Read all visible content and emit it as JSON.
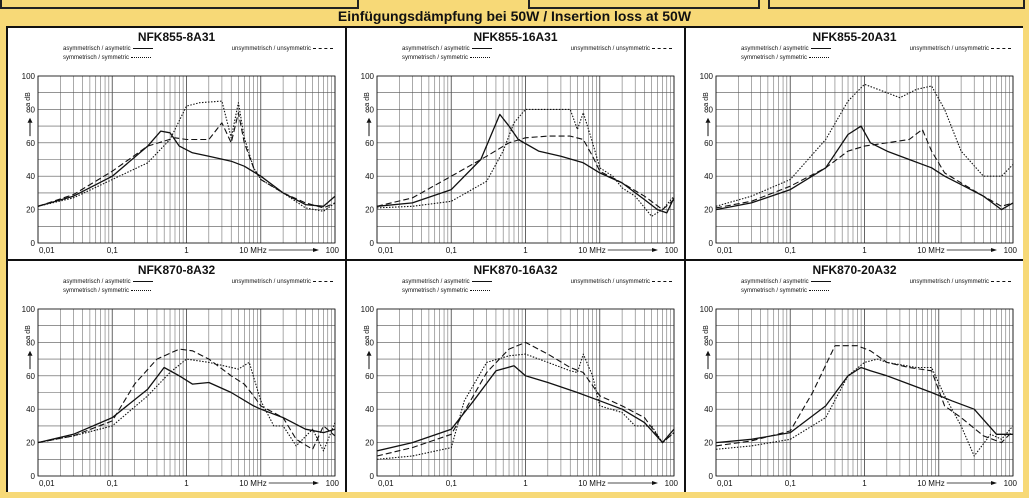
{
  "heading": "Einfügungsdämpfung bei 50W  /  Insertion loss at 50W",
  "legend": {
    "asym": "asymmetrisch / asymetric",
    "unsym": "unsymmetrisch / unsymmetric",
    "sym": "symmetrisch / symmetric"
  },
  "ytick_labels": [
    "0",
    "20",
    "40",
    "60",
    "80",
    "100"
  ],
  "y_unit": "a dB",
  "xtick_labels": [
    "0,01",
    "0,1",
    "1",
    "10 MHz",
    "100"
  ],
  "styles": {
    "asym": "solid",
    "unsym": "dashed",
    "sym": "dotted"
  },
  "colors": {
    "background": "#f7d977",
    "line": "#111111",
    "grid": "#555555",
    "panel": "#ffffff"
  },
  "chart_data": [
    {
      "type": "line",
      "title": "NFK855-8A31",
      "xscale": "log",
      "xlim": [
        0.01,
        100
      ],
      "ylim": [
        0,
        100
      ],
      "grid": true,
      "series": [
        {
          "name": "asymmetrisch / asymetric",
          "style": "solid",
          "x": [
            0.01,
            0.03,
            0.1,
            0.3,
            0.45,
            0.6,
            0.8,
            1.2,
            2,
            4,
            6,
            10,
            20,
            40,
            70,
            100
          ],
          "y": [
            22,
            28,
            40,
            58,
            67,
            66,
            58,
            54,
            52,
            49,
            46,
            40,
            30,
            23,
            22,
            28
          ]
        },
        {
          "name": "unsymmetrisch / unsymmetric",
          "style": "dashed",
          "x": [
            0.01,
            0.03,
            0.1,
            0.3,
            0.7,
            1,
            2,
            3,
            4,
            5,
            6,
            8,
            10,
            20,
            40,
            70,
            100
          ],
          "y": [
            22,
            29,
            43,
            58,
            63,
            62,
            62,
            72,
            60,
            78,
            60,
            45,
            38,
            30,
            24,
            21,
            24
          ]
        },
        {
          "name": "symmetrisch / symmetric",
          "style": "dotted",
          "x": [
            0.01,
            0.03,
            0.1,
            0.3,
            0.6,
            1,
            1.5,
            3,
            4,
            5,
            6,
            8,
            10,
            20,
            40,
            70,
            100
          ],
          "y": [
            22,
            27,
            38,
            48,
            62,
            82,
            84,
            85,
            63,
            84,
            63,
            45,
            38,
            30,
            21,
            19,
            24
          ]
        }
      ]
    },
    {
      "type": "line",
      "title": "NFK855-16A31",
      "xscale": "log",
      "xlim": [
        0.01,
        100
      ],
      "ylim": [
        0,
        100
      ],
      "grid": true,
      "series": [
        {
          "name": "asymmetrisch / asymetric",
          "style": "solid",
          "x": [
            0.01,
            0.03,
            0.1,
            0.25,
            0.45,
            0.6,
            0.8,
            1.5,
            3,
            6,
            10,
            20,
            40,
            60,
            80,
            100
          ],
          "y": [
            22,
            24,
            32,
            50,
            77,
            70,
            62,
            55,
            52,
            48,
            42,
            36,
            26,
            20,
            18,
            27
          ]
        },
        {
          "name": "unsymmetrisch / unsymmetric",
          "style": "dashed",
          "x": [
            0.01,
            0.03,
            0.1,
            0.3,
            0.6,
            1,
            2,
            4,
            6,
            8,
            10,
            20,
            40,
            70,
            100
          ],
          "y": [
            22,
            27,
            40,
            52,
            60,
            63,
            64,
            64,
            62,
            52,
            43,
            36,
            28,
            20,
            26
          ]
        },
        {
          "name": "symmetrisch / symmetric",
          "style": "dotted",
          "x": [
            0.01,
            0.03,
            0.1,
            0.3,
            0.5,
            0.7,
            1,
            2,
            4,
            5,
            6,
            8,
            10,
            15,
            20,
            30,
            50,
            70,
            100
          ],
          "y": [
            21,
            22,
            25,
            37,
            55,
            72,
            80,
            80,
            80,
            68,
            78,
            60,
            45,
            40,
            33,
            28,
            16,
            20,
            28
          ]
        }
      ]
    },
    {
      "type": "line",
      "title": "NFK855-20A31",
      "xscale": "log",
      "xlim": [
        0.01,
        100
      ],
      "ylim": [
        0,
        100
      ],
      "grid": true,
      "series": [
        {
          "name": "asymmetrisch / asymetric",
          "style": "solid",
          "x": [
            0.01,
            0.03,
            0.1,
            0.3,
            0.6,
            0.9,
            1.2,
            2,
            4,
            8,
            12,
            20,
            40,
            70,
            100
          ],
          "y": [
            20,
            24,
            32,
            45,
            65,
            70,
            60,
            55,
            50,
            45,
            40,
            35,
            28,
            20,
            24
          ]
        },
        {
          "name": "unsymmetrisch / unsymmetric",
          "style": "dashed",
          "x": [
            0.01,
            0.03,
            0.1,
            0.3,
            0.6,
            1,
            2,
            4,
            6,
            8,
            12,
            20,
            40,
            70,
            100
          ],
          "y": [
            21,
            25,
            34,
            45,
            55,
            58,
            60,
            62,
            68,
            55,
            42,
            36,
            28,
            22,
            24
          ]
        },
        {
          "name": "symmetrisch / symmetric",
          "style": "dotted",
          "x": [
            0.01,
            0.03,
            0.1,
            0.3,
            0.6,
            1,
            2,
            3,
            5,
            8,
            12,
            20,
            40,
            70,
            100
          ],
          "y": [
            22,
            28,
            38,
            62,
            85,
            95,
            90,
            87,
            92,
            94,
            80,
            55,
            40,
            40,
            47
          ]
        }
      ]
    },
    {
      "type": "line",
      "title": "NFK870-8A32",
      "xscale": "log",
      "xlim": [
        0.01,
        100
      ],
      "ylim": [
        0,
        100
      ],
      "grid": true,
      "series": [
        {
          "name": "asymmetrisch / asymetric",
          "style": "solid",
          "x": [
            0.01,
            0.03,
            0.1,
            0.3,
            0.5,
            0.8,
            1.2,
            2,
            4,
            8,
            10,
            20,
            40,
            70,
            100
          ],
          "y": [
            20,
            25,
            35,
            52,
            65,
            60,
            55,
            56,
            50,
            42,
            40,
            35,
            28,
            26,
            28
          ]
        },
        {
          "name": "unsymmetrisch / unsymmetric",
          "style": "dashed",
          "x": [
            0.01,
            0.03,
            0.1,
            0.2,
            0.4,
            0.8,
            1.2,
            2,
            4,
            6,
            8,
            10,
            20,
            30,
            50,
            70,
            100
          ],
          "y": [
            20,
            24,
            33,
            55,
            70,
            76,
            75,
            70,
            60,
            55,
            48,
            42,
            35,
            22,
            16,
            30,
            24
          ]
        },
        {
          "name": "symmetrisch / symmetric",
          "style": "dotted",
          "x": [
            0.01,
            0.03,
            0.1,
            0.3,
            0.6,
            1,
            2,
            5,
            7,
            10,
            15,
            20,
            30,
            50,
            70,
            100
          ],
          "y": [
            20,
            24,
            30,
            48,
            62,
            70,
            68,
            64,
            68,
            45,
            30,
            30,
            18,
            28,
            15,
            32
          ]
        }
      ]
    },
    {
      "type": "line",
      "title": "NFK870-16A32",
      "xscale": "log",
      "xlim": [
        0.01,
        100
      ],
      "ylim": [
        0,
        100
      ],
      "grid": true,
      "series": [
        {
          "name": "asymmetrisch / asymetric",
          "style": "solid",
          "x": [
            0.01,
            0.03,
            0.1,
            0.2,
            0.4,
            0.7,
            1,
            2,
            5,
            10,
            20,
            40,
            70,
            100
          ],
          "y": [
            15,
            20,
            28,
            45,
            63,
            66,
            60,
            56,
            50,
            45,
            40,
            32,
            20,
            28
          ]
        },
        {
          "name": "unsymmetrisch / unsymmetric",
          "style": "dashed",
          "x": [
            0.01,
            0.03,
            0.1,
            0.3,
            0.6,
            1,
            2,
            4,
            6,
            10,
            20,
            40,
            70,
            100
          ],
          "y": [
            12,
            17,
            25,
            62,
            76,
            80,
            73,
            65,
            62,
            48,
            42,
            35,
            20,
            26
          ]
        },
        {
          "name": "symmetrisch / symmetric",
          "style": "dotted",
          "x": [
            0.01,
            0.03,
            0.1,
            0.15,
            0.3,
            0.6,
            1,
            2,
            4,
            5,
            6,
            8,
            10,
            20,
            30,
            50,
            70,
            100
          ],
          "y": [
            10,
            12,
            17,
            45,
            68,
            72,
            73,
            68,
            63,
            62,
            73,
            60,
            42,
            38,
            30,
            30,
            20,
            26
          ]
        }
      ]
    },
    {
      "type": "line",
      "title": "NFK870-20A32",
      "xscale": "log",
      "xlim": [
        0.01,
        100
      ],
      "ylim": [
        0,
        100
      ],
      "grid": true,
      "series": [
        {
          "name": "asymmetrisch / asymetric",
          "style": "solid",
          "x": [
            0.01,
            0.03,
            0.1,
            0.3,
            0.6,
            0.9,
            1.2,
            2,
            4,
            8,
            15,
            30,
            60,
            100
          ],
          "y": [
            20,
            22,
            26,
            42,
            60,
            65,
            63,
            60,
            55,
            50,
            45,
            40,
            25,
            25
          ]
        },
        {
          "name": "unsymmetrisch / unsymmetric",
          "style": "dashed",
          "x": [
            0.01,
            0.03,
            0.1,
            0.2,
            0.4,
            0.8,
            1.2,
            2,
            4,
            8,
            12,
            20,
            40,
            70,
            100
          ],
          "y": [
            18,
            21,
            27,
            50,
            78,
            78,
            75,
            68,
            65,
            63,
            42,
            35,
            24,
            20,
            27
          ]
        },
        {
          "name": "symmetrisch / symmetric",
          "style": "dotted",
          "x": [
            0.01,
            0.03,
            0.1,
            0.3,
            0.6,
            1,
            1.5,
            2,
            5,
            8,
            12,
            20,
            30,
            50,
            70,
            100
          ],
          "y": [
            16,
            18,
            22,
            35,
            60,
            68,
            70,
            68,
            65,
            65,
            48,
            30,
            12,
            25,
            22,
            30
          ]
        }
      ]
    }
  ]
}
